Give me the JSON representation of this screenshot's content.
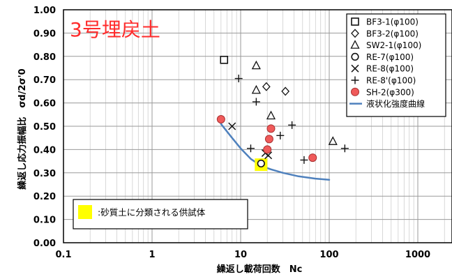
{
  "chart_data": {
    "type": "scatter",
    "title": "3号埋戻土",
    "ylabel": "繰返し応力振幅比　σd/2σ'0",
    "xlabel": "繰返し載荷回数　Nc",
    "x_scale": "log",
    "xlim": [
      0.1,
      2000
    ],
    "ylim": [
      0.0,
      1.0
    ],
    "x_ticks": [
      "0.1",
      "1",
      "10",
      "100",
      "1000"
    ],
    "y_ticks": [
      "0.00",
      "0.10",
      "0.20",
      "0.30",
      "0.40",
      "0.50",
      "0.60",
      "0.70",
      "0.80",
      "0.90",
      "1.00"
    ],
    "grid": true,
    "legend_position": "top-right",
    "series": [
      {
        "name": "BF3-1(φ100)",
        "marker": "square",
        "color": "#111111",
        "points": [
          [
            6.5,
            0.785
          ]
        ]
      },
      {
        "name": "BF3-2(φ100)",
        "marker": "diamond",
        "color": "#111111",
        "points": [
          [
            19.5,
            0.67
          ],
          [
            32,
            0.65
          ]
        ]
      },
      {
        "name": "SW2-1(φ100)",
        "marker": "triangle",
        "color": "#111111",
        "points": [
          [
            15,
            0.76
          ],
          [
            15,
            0.655
          ],
          [
            22,
            0.545
          ],
          [
            110,
            0.435
          ]
        ]
      },
      {
        "name": "RE-7(φ100)",
        "marker": "circle",
        "color": "#111111",
        "points": [
          [
            17,
            0.34
          ]
        ]
      },
      {
        "name": "RE-8(φ100)",
        "marker": "x",
        "color": "#111111",
        "points": [
          [
            8,
            0.5
          ],
          [
            19,
            0.385
          ],
          [
            20.5,
            0.375
          ]
        ]
      },
      {
        "name": "RE-8'(φ100)",
        "marker": "plus",
        "color": "#111111",
        "points": [
          [
            9.5,
            0.705
          ],
          [
            15,
            0.605
          ],
          [
            13,
            0.405
          ],
          [
            28,
            0.46
          ],
          [
            38,
            0.505
          ],
          [
            52,
            0.355
          ],
          [
            150,
            0.405
          ]
        ]
      },
      {
        "name": "SH-2(φ300)",
        "marker": "filled-circle",
        "color": "#f05a5a",
        "points": [
          [
            6,
            0.53
          ],
          [
            22,
            0.49
          ],
          [
            21,
            0.445
          ],
          [
            20,
            0.4
          ],
          [
            65,
            0.365
          ]
        ]
      }
    ],
    "curve": {
      "name": "液状化強度曲線",
      "color": "#4f81bd",
      "points": [
        [
          6,
          0.51
        ],
        [
          8,
          0.45
        ],
        [
          10,
          0.405
        ],
        [
          13,
          0.36
        ],
        [
          17,
          0.33
        ],
        [
          22,
          0.315
        ],
        [
          30,
          0.3
        ],
        [
          45,
          0.285
        ],
        [
          70,
          0.275
        ],
        [
          100,
          0.27
        ]
      ]
    },
    "highlight": {
      "label": ":砂質土に分類される供試体",
      "color": "#ffff00",
      "points": [
        [
          17,
          0.335
        ]
      ]
    }
  }
}
